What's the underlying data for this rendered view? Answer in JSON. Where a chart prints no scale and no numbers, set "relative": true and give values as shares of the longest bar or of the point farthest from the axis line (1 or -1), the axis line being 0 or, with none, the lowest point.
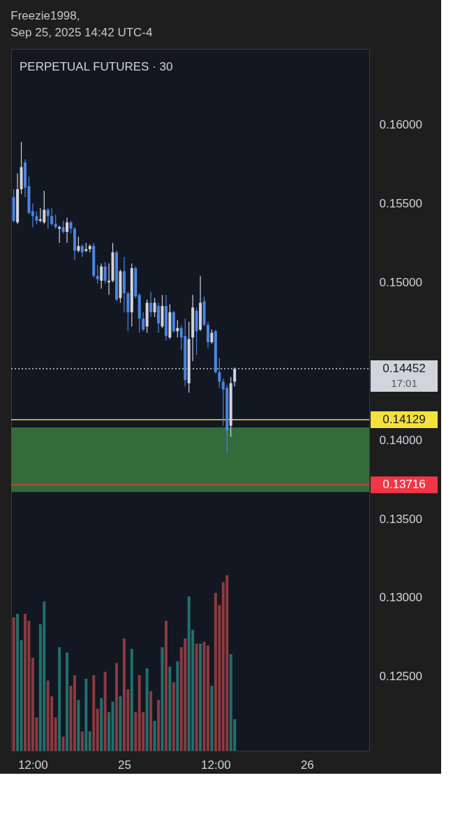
{
  "chart_data": [
    {
      "type": "candlestick",
      "title": "PERPETUAL FUTURES · 30",
      "annotations": [
        "Freezie1998,",
        "Sep 25, 2025 14:42 UTC-4"
      ],
      "x": [
        "2025-09-24T09:30",
        "2025-09-24T10:00",
        "2025-09-24T10:30",
        "2025-09-24T11:00",
        "2025-09-24T11:30",
        "2025-09-24T12:00",
        "2025-09-24T12:30",
        "2025-09-24T13:00",
        "2025-09-24T13:30",
        "2025-09-24T14:00",
        "2025-09-24T14:30",
        "2025-09-24T15:00",
        "2025-09-24T15:30",
        "2025-09-24T16:00",
        "2025-09-24T16:30",
        "2025-09-24T17:00",
        "2025-09-24T17:30",
        "2025-09-24T18:00",
        "2025-09-24T18:30",
        "2025-09-24T19:00",
        "2025-09-24T19:30",
        "2025-09-24T20:00",
        "2025-09-24T20:30",
        "2025-09-24T21:00",
        "2025-09-24T21:30",
        "2025-09-24T22:00",
        "2025-09-24T22:30",
        "2025-09-24T23:00",
        "2025-09-24T23:30",
        "2025-09-25T00:00",
        "2025-09-25T00:30",
        "2025-09-25T01:00",
        "2025-09-25T01:30",
        "2025-09-25T02:00",
        "2025-09-25T02:30",
        "2025-09-25T03:00",
        "2025-09-25T03:30",
        "2025-09-25T04:00",
        "2025-09-25T04:30",
        "2025-09-25T05:00",
        "2025-09-25T05:30",
        "2025-09-25T06:00",
        "2025-09-25T06:30",
        "2025-09-25T07:00",
        "2025-09-25T07:30",
        "2025-09-25T08:00",
        "2025-09-25T08:30",
        "2025-09-25T09:00",
        "2025-09-25T09:30",
        "2025-09-25T10:00",
        "2025-09-25T10:30",
        "2025-09-25T11:00",
        "2025-09-25T11:30",
        "2025-09-25T12:00",
        "2025-09-25T12:30",
        "2025-09-25T13:00",
        "2025-09-25T13:30",
        "2025-09-25T14:00",
        "2025-09-25T14:30"
      ],
      "ohlc": [
        [
          0.1554,
          0.1559,
          0.1538,
          0.1539
        ],
        [
          0.1538,
          0.1569,
          0.1537,
          0.1559
        ],
        [
          0.1559,
          0.1589,
          0.1556,
          0.1573
        ],
        [
          0.1576,
          0.1578,
          0.1554,
          0.156
        ],
        [
          0.1561,
          0.1567,
          0.1543,
          0.1544
        ],
        [
          0.1545,
          0.155,
          0.1535,
          0.1542
        ],
        [
          0.1542,
          0.1545,
          0.1537,
          0.1539
        ],
        [
          0.1539,
          0.1547,
          0.1538,
          0.154
        ],
        [
          0.1538,
          0.1558,
          0.1537,
          0.1546
        ],
        [
          0.1546,
          0.1547,
          0.1534,
          0.1542
        ],
        [
          0.1542,
          0.1547,
          0.1536,
          0.1537
        ],
        [
          0.1537,
          0.1543,
          0.1534,
          0.1535
        ],
        [
          0.1534,
          0.1536,
          0.1525,
          0.1535
        ],
        [
          0.1535,
          0.1539,
          0.1531,
          0.1532
        ],
        [
          0.1532,
          0.1541,
          0.1525,
          0.1538
        ],
        [
          0.1538,
          0.1539,
          0.1531,
          0.1534
        ],
        [
          0.1534,
          0.1535,
          0.1514,
          0.152
        ],
        [
          0.152,
          0.1529,
          0.1519,
          0.1523
        ],
        [
          0.1523,
          0.1524,
          0.1516,
          0.1519
        ],
        [
          0.152,
          0.1525,
          0.1519,
          0.1521
        ],
        [
          0.1521,
          0.1524,
          0.1519,
          0.1523
        ],
        [
          0.1523,
          0.1525,
          0.1503,
          0.1504
        ],
        [
          0.1504,
          0.1511,
          0.1499,
          0.1502
        ],
        [
          0.1501,
          0.1512,
          0.1496,
          0.151
        ],
        [
          0.151,
          0.1513,
          0.1499,
          0.1501
        ],
        [
          0.15,
          0.1512,
          0.1492,
          0.1501
        ],
        [
          0.1501,
          0.1525,
          0.15,
          0.1519
        ],
        [
          0.1519,
          0.152,
          0.1488,
          0.1489
        ],
        [
          0.149,
          0.1508,
          0.1487,
          0.1507
        ],
        [
          0.1507,
          0.1516,
          0.1481,
          0.1493
        ],
        [
          0.1493,
          0.1494,
          0.1469,
          0.1481
        ],
        [
          0.1481,
          0.1512,
          0.1472,
          0.1509
        ],
        [
          0.1509,
          0.151,
          0.149,
          0.1491
        ],
        [
          0.1492,
          0.1493,
          0.1468,
          0.1477
        ],
        [
          0.1477,
          0.1481,
          0.1469,
          0.147
        ],
        [
          0.1472,
          0.1489,
          0.1468,
          0.1487
        ],
        [
          0.1487,
          0.1494,
          0.1478,
          0.1481
        ],
        [
          0.1481,
          0.149,
          0.1478,
          0.1487
        ],
        [
          0.1485,
          0.1487,
          0.1468,
          0.1474
        ],
        [
          0.1472,
          0.1492,
          0.1471,
          0.1485
        ],
        [
          0.1485,
          0.1492,
          0.1463,
          0.1466
        ],
        [
          0.1465,
          0.1486,
          0.1464,
          0.1481
        ],
        [
          0.1481,
          0.1482,
          0.1468,
          0.1469
        ],
        [
          0.1469,
          0.1476,
          0.1465,
          0.1471
        ],
        [
          0.1471,
          0.1473,
          0.1457,
          0.1465
        ],
        [
          0.1466,
          0.1477,
          0.1434,
          0.1438
        ],
        [
          0.1436,
          0.1475,
          0.143,
          0.1464
        ],
        [
          0.1465,
          0.1492,
          0.145,
          0.1484
        ],
        [
          0.1482,
          0.1484,
          0.1454,
          0.1469
        ],
        [
          0.147,
          0.1504,
          0.1469,
          0.1487
        ],
        [
          0.1488,
          0.1491,
          0.1472,
          0.1473
        ],
        [
          0.1473,
          0.1475,
          0.1458,
          0.1462
        ],
        [
          0.1462,
          0.147,
          0.1461,
          0.1468
        ],
        [
          0.1469,
          0.147,
          0.1442,
          0.1443
        ],
        [
          0.1443,
          0.1452,
          0.1433,
          0.1437
        ],
        [
          0.1437,
          0.1439,
          0.1409,
          0.1432
        ],
        [
          0.1433,
          0.1435,
          0.1392,
          0.1406
        ],
        [
          0.1409,
          0.144,
          0.1402,
          0.1436
        ],
        [
          0.1437,
          0.1446,
          0.1434,
          0.1445
        ]
      ],
      "colors": [
        "#4a86e0",
        "#d1d4dc",
        "#d1d4dc",
        "#4a86e0",
        "#4a86e0",
        "#4a86e0",
        "#4a86e0",
        "#d1d4dc",
        "#d1d4dc",
        "#4a86e0",
        "#4a86e0",
        "#4a86e0",
        "#d1d4dc",
        "#4a86e0",
        "#d1d4dc",
        "#4a86e0",
        "#4a86e0",
        "#d1d4dc",
        "#4a86e0",
        "#d1d4dc",
        "#d1d4dc",
        "#4a86e0",
        "#4a86e0",
        "#d1d4dc",
        "#4a86e0",
        "#d1d4dc",
        "#d1d4dc",
        "#4a86e0",
        "#d1d4dc",
        "#4a86e0",
        "#4a86e0",
        "#d1d4dc",
        "#4a86e0",
        "#4a86e0",
        "#4a86e0",
        "#d1d4dc",
        "#4a86e0",
        "#d1d4dc",
        "#4a86e0",
        "#d1d4dc",
        "#4a86e0",
        "#d1d4dc",
        "#4a86e0",
        "#d1d4dc",
        "#4a86e0",
        "#4a86e0",
        "#d1d4dc",
        "#d1d4dc",
        "#4a86e0",
        "#d1d4dc",
        "#4a86e0",
        "#4a86e0",
        "#d1d4dc",
        "#4a86e0",
        "#4a86e0",
        "#4a86e0",
        "#4a86e0",
        "#d1d4dc",
        "#d1d4dc"
      ],
      "xlim": [
        "2025-09-24T09:10",
        "2025-09-26T08:10"
      ],
      "xticks": [
        {
          "value": "2025-09-24T12:00",
          "label": "12:00"
        },
        {
          "value": "2025-09-25T00:00",
          "label": "25"
        },
        {
          "value": "2025-09-25T12:00",
          "label": "12:00"
        },
        {
          "value": "2025-09-26T00:00",
          "label": "26"
        }
      ],
      "ylim": [
        0.1203,
        0.1648
      ],
      "yticks": [
        {
          "value": 0.125,
          "label": "0.12500"
        },
        {
          "value": 0.13,
          "label": "0.13000"
        },
        {
          "value": 0.135,
          "label": "0.13500"
        },
        {
          "value": 0.14,
          "label": "0.14000"
        },
        {
          "value": 0.15,
          "label": "0.15000"
        },
        {
          "value": 0.155,
          "label": "0.15500"
        },
        {
          "value": 0.16,
          "label": "0.16000"
        }
      ],
      "bands": [
        {
          "axis": "y",
          "from": 0.1367,
          "to": 0.1408,
          "label": null,
          "color": "#336b3a"
        }
      ],
      "ref_lines": [
        {
          "axis": "y",
          "value": 0.14452,
          "label": "0.14452\n17:01",
          "color": "#d1d4dc",
          "line_style": "dotted"
        },
        {
          "axis": "y",
          "value": 0.14129,
          "label": "0.14129",
          "color": "#f5e13b",
          "line_style": "solid"
        },
        {
          "axis": "y",
          "value": 0.13716,
          "label": "0.13716",
          "color": "#f23645",
          "line_style": "solid"
        }
      ]
    },
    {
      "type": "bar",
      "relative": true,
      "categories": [
        null,
        null,
        null,
        null,
        null,
        null,
        null,
        null,
        null,
        null,
        null,
        null,
        null,
        null,
        null,
        null,
        null,
        null,
        null,
        null,
        null,
        null,
        null,
        null,
        null,
        null,
        null,
        null,
        null,
        null,
        null,
        null,
        null,
        null,
        null,
        null,
        null,
        null,
        null,
        null,
        null,
        null,
        null,
        null,
        null,
        null,
        null,
        null,
        null,
        null,
        null,
        null,
        null,
        null,
        null,
        null,
        null,
        null,
        null
      ],
      "values": [
        0.76,
        0.78,
        0.63,
        0.78,
        0.74,
        0.53,
        0.19,
        0.72,
        0.85,
        0.4,
        0.31,
        0.19,
        0.59,
        0.08,
        0.56,
        0.37,
        0.43,
        0.29,
        0.11,
        0.41,
        0.11,
        0.43,
        0.24,
        0.3,
        0.45,
        0.22,
        0.28,
        0.5,
        0.31,
        0.64,
        0.35,
        0.58,
        0.22,
        0.43,
        0.22,
        0.47,
        0.34,
        0.17,
        0.29,
        0.59,
        0.74,
        0.48,
        0.39,
        0.51,
        0.59,
        0.64,
        0.88,
        0.69,
        0.61,
        0.61,
        0.62,
        0.6,
        0.37,
        0.9,
        0.83,
        0.96,
        1.0,
        0.55,
        0.18
      ],
      "colors": [
        "#8b3a40",
        "#22706b",
        "#22706b",
        "#8b3a40",
        "#8b3a40",
        "#8b3a40",
        "#8b3a40",
        "#22706b",
        "#22706b",
        "#8b3a40",
        "#8b3a40",
        "#8b3a40",
        "#22706b",
        "#8b3a40",
        "#22706b",
        "#8b3a40",
        "#8b3a40",
        "#22706b",
        "#8b3a40",
        "#22706b",
        "#22706b",
        "#8b3a40",
        "#8b3a40",
        "#22706b",
        "#8b3a40",
        "#22706b",
        "#22706b",
        "#8b3a40",
        "#22706b",
        "#8b3a40",
        "#8b3a40",
        "#22706b",
        "#8b3a40",
        "#8b3a40",
        "#8b3a40",
        "#22706b",
        "#8b3a40",
        "#22706b",
        "#8b3a40",
        "#22706b",
        "#8b3a40",
        "#22706b",
        "#8b3a40",
        "#22706b",
        "#8b3a40",
        "#8b3a40",
        "#22706b",
        "#22706b",
        "#8b3a40",
        "#22706b",
        "#8b3a40",
        "#8b3a40",
        "#22706b",
        "#8b3a40",
        "#8b3a40",
        "#8b3a40",
        "#8b3a40",
        "#22706b",
        "#22706b"
      ]
    }
  ]
}
